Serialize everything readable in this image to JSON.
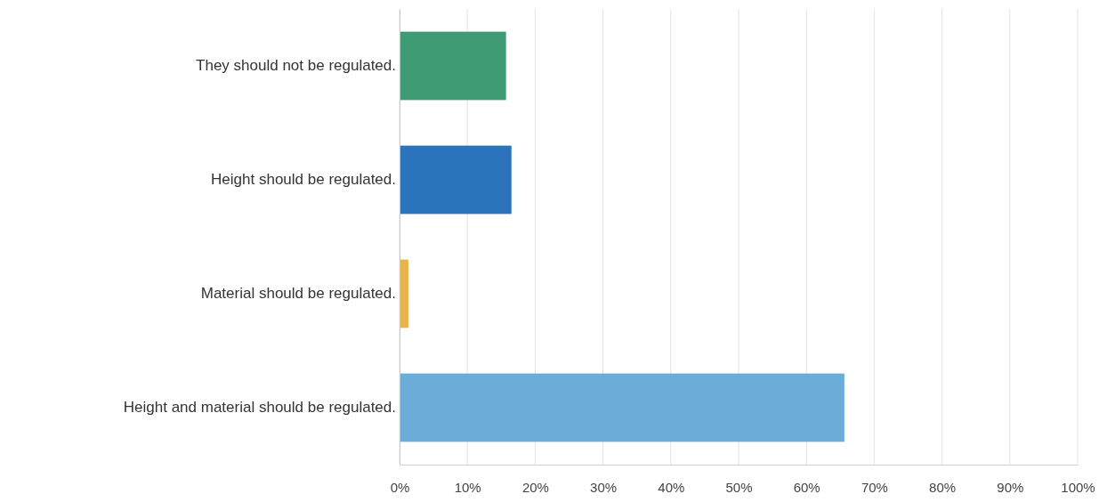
{
  "chart_data": {
    "type": "bar",
    "orientation": "horizontal",
    "categories": [
      "They should not be regulated.",
      "Height should be regulated.",
      "Material should be regulated.",
      "Height and material should be regulated."
    ],
    "values": [
      15.7,
      16.5,
      1.3,
      65.6
    ],
    "colors": [
      "#3e9a72",
      "#2b73ba",
      "#e8b44a",
      "#6bacd8"
    ],
    "xlim": [
      0,
      100
    ],
    "xticks": [
      {
        "value": 0,
        "label": "0%"
      },
      {
        "value": 10,
        "label": "10%"
      },
      {
        "value": 20,
        "label": "20%"
      },
      {
        "value": 30,
        "label": "30%"
      },
      {
        "value": 40,
        "label": "40%"
      },
      {
        "value": 50,
        "label": "50%"
      },
      {
        "value": 60,
        "label": "60%"
      },
      {
        "value": 70,
        "label": "70%"
      },
      {
        "value": 80,
        "label": "80%"
      },
      {
        "value": 90,
        "label": "90%"
      },
      {
        "value": 100,
        "label": "100%"
      }
    ],
    "grid": "x"
  }
}
